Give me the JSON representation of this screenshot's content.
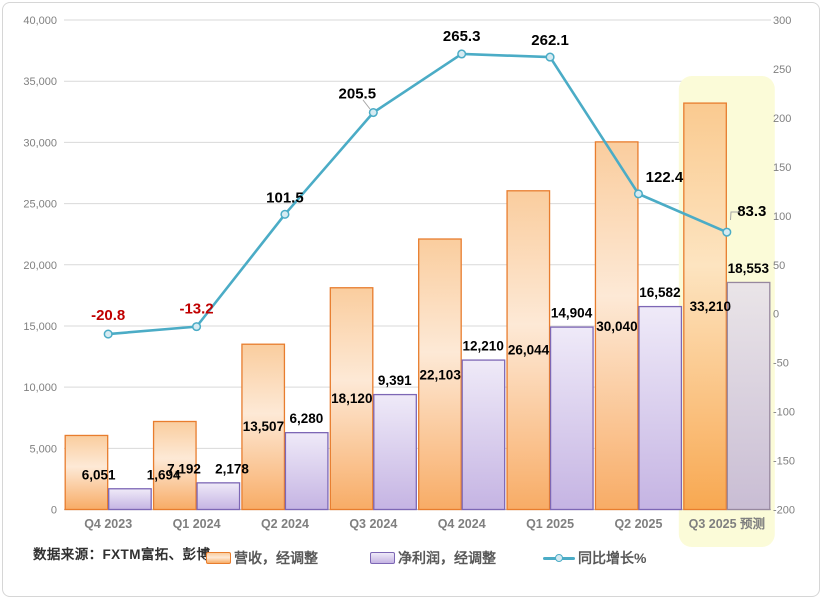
{
  "source_note": "数据来源：FXTM富拓、彭博",
  "chart_data": {
    "type": "combo",
    "categories": [
      "Q4 2023",
      "Q1 2024",
      "Q2 2024",
      "Q3 2024",
      "Q4 2024",
      "Q1 2025",
      "Q2 2025",
      "Q3 2025 预测"
    ],
    "forecast_category_index": 7,
    "series": [
      {
        "name": "营收，经调整",
        "type": "bar",
        "axis": "left",
        "values": [
          6051,
          7192,
          13507,
          18120,
          22103,
          26044,
          30040,
          33210
        ],
        "labels": [
          "6,051",
          "7,192",
          "13,507",
          "18,120",
          "22,103",
          "26,044",
          "30,040",
          "33,210"
        ]
      },
      {
        "name": "净利润，经调整",
        "type": "bar",
        "axis": "left",
        "values": [
          1694,
          2178,
          6280,
          9391,
          12210,
          14904,
          16582,
          18553
        ],
        "labels": [
          "1,694",
          "2,178",
          "6,280",
          "9,391",
          "12,210",
          "14,904",
          "16,582",
          "18,553"
        ]
      },
      {
        "name": "同比增长%",
        "type": "line",
        "axis": "right",
        "values": [
          -20.8,
          -13.2,
          101.5,
          205.5,
          265.3,
          262.1,
          122.4,
          83.3
        ],
        "labels": [
          "-20.8",
          "-13.2",
          "101.5",
          "205.5",
          "265.3",
          "262.1",
          "122.4",
          "83.3"
        ]
      }
    ],
    "left_axis": {
      "min": 0,
      "max": 40000,
      "step": 5000,
      "tick_labels": [
        "0",
        "5,000",
        "10,000",
        "15,000",
        "20,000",
        "25,000",
        "30,000",
        "35,000",
        "40,000"
      ]
    },
    "right_axis": {
      "min": -200,
      "max": 300,
      "step": 50,
      "tick_labels": [
        "-200",
        "-150",
        "-100",
        "-50",
        "0",
        "50",
        "100",
        "150",
        "200",
        "250",
        "300"
      ]
    },
    "grid": true,
    "legend_position": "bottom"
  },
  "colors": {
    "revenue_border": "#E87D2E",
    "revenue_fill_top": "#FACD9E",
    "revenue_fill_mid": "#FDE9D6",
    "revenue_fill_bottom": "#F8AC66",
    "revenue_forecast_top": "#FACA90",
    "revenue_forecast_mid": "#FDE4C0",
    "revenue_forecast_bottom": "#F8A851",
    "net_border": "#7D67B5",
    "net_fill_top": "#EFEAF8",
    "net_fill_bottom": "#C5B4E3",
    "net_forecast_border": "#97889F",
    "net_forecast_top": "#EAE5E8",
    "net_forecast_bottom": "#C9BDD4",
    "growth_line": "#4BACC6",
    "marker_fill": "#D6EBF2",
    "negative_label": "#C00000",
    "positive_label": "#000000",
    "highlight": "#FBFBD8",
    "gridline": "#D9D9D9",
    "axis_line": "#BFBFBF",
    "tick_label": "#808080",
    "category_label": "#7F7F7F",
    "leader_line": "#A6A6A6"
  }
}
